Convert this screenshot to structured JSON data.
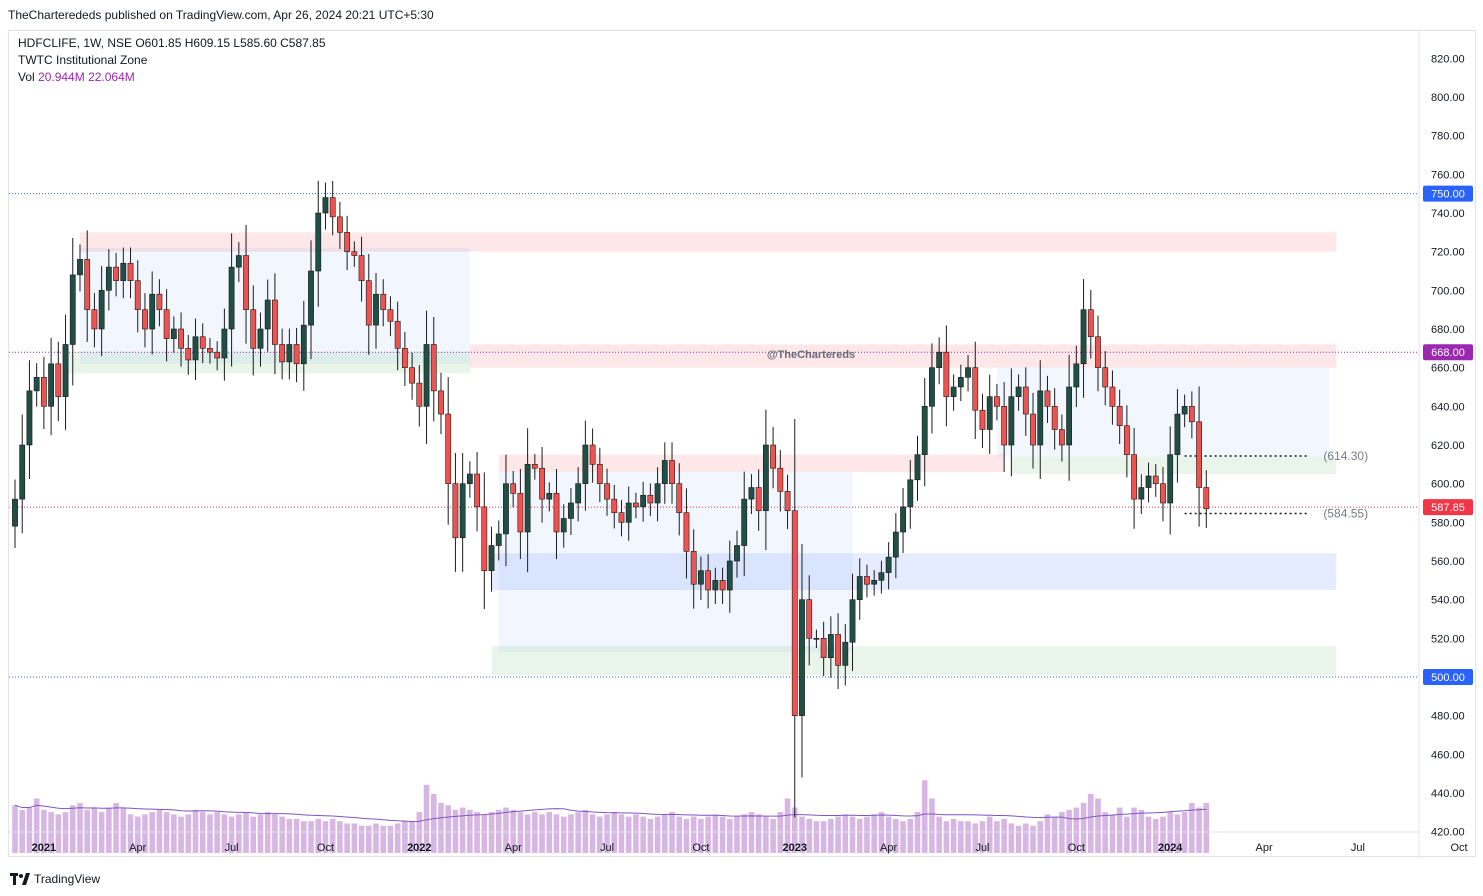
{
  "header": {
    "publish_line": "TheCharterededs published on TradingView.com, Apr 26, 2024 20:21 UTC+5:30"
  },
  "legend": {
    "symbol_line": "HDFCLIFE, 1W, NSE  O601.85  H609.15  L585.60  C587.85",
    "indicator": "TWTC Institutional Zone",
    "vol_label": "Vol",
    "vol_a": "20.944M",
    "vol_b": "22.064M"
  },
  "watermark": "@TheChartereds",
  "footer": {
    "brand": "TradingView",
    "logo_icon": "tradingview-logo-icon"
  },
  "colors": {
    "up": "#26a69a",
    "down": "#ef5350",
    "up_dark": "#1f4f45",
    "down_dark": "#c9303c",
    "vol": "#d8b6e3",
    "vol_ma": "#7e57c2",
    "axis_text": "#131722",
    "tag_blue": "#2962ff",
    "tag_purple": "#9c27b0",
    "tag_red": "#f23645"
  },
  "chart_data": {
    "type": "candlestick",
    "title": "HDFCLIFE, 1W, NSE",
    "ylim": [
      410,
      830
    ],
    "y_ticks": [
      420,
      440,
      460,
      480,
      500,
      520,
      540,
      560,
      580,
      600,
      620,
      640,
      660,
      680,
      700,
      720,
      740,
      760,
      780,
      800,
      820
    ],
    "x_ticks": [
      {
        "label": "2021",
        "week": 4
      },
      {
        "label": "Apr",
        "week": 17
      },
      {
        "label": "Jul",
        "week": 30
      },
      {
        "label": "Oct",
        "week": 43
      },
      {
        "label": "2022",
        "week": 56
      },
      {
        "label": "Apr",
        "week": 69
      },
      {
        "label": "Jul",
        "week": 82
      },
      {
        "label": "Oct",
        "week": 95
      },
      {
        "label": "2023",
        "week": 108
      },
      {
        "label": "Apr",
        "week": 121
      },
      {
        "label": "Jul",
        "week": 134
      },
      {
        "label": "Oct",
        "week": 147
      },
      {
        "label": "2024",
        "week": 160
      },
      {
        "label": "Apr",
        "week": 173
      },
      {
        "label": "Jul",
        "week": 186
      },
      {
        "label": "Oct",
        "week": 200
      }
    ],
    "close_weekly": [
      592,
      620,
      648,
      655,
      640,
      662,
      645,
      672,
      708,
      716,
      690,
      680,
      700,
      712,
      705,
      714,
      705,
      690,
      680,
      698,
      690,
      675,
      680,
      670,
      664,
      676,
      670,
      668,
      665,
      680,
      712,
      718,
      690,
      670,
      680,
      695,
      672,
      663,
      672,
      662,
      682,
      710,
      740,
      748,
      738,
      730,
      720,
      718,
      705,
      682,
      698,
      690,
      684,
      670,
      660,
      652,
      640,
      672,
      648,
      636,
      600,
      572,
      600,
      605,
      588,
      555,
      568,
      574,
      600,
      595,
      575,
      610,
      608,
      592,
      595,
      575,
      582,
      590,
      600,
      620,
      610,
      600,
      592,
      585,
      580,
      590,
      588,
      594,
      590,
      600,
      612,
      600,
      585,
      565,
      548,
      555,
      545,
      550,
      545,
      560,
      568,
      592,
      598,
      586,
      620,
      608,
      596,
      586,
      480,
      540,
      520,
      520,
      510,
      522,
      506,
      518,
      540,
      552,
      548,
      550,
      554,
      562,
      575,
      588,
      602,
      615,
      640,
      660,
      668,
      645,
      650,
      655,
      660,
      638,
      628,
      645,
      640,
      620,
      645,
      650,
      636,
      620,
      648,
      640,
      628,
      620,
      650,
      662,
      690,
      676,
      660,
      650,
      640,
      630,
      615,
      592,
      598,
      604,
      600,
      590,
      615,
      636,
      640,
      632,
      598,
      587
    ],
    "volume_weekly": [
      21,
      19,
      20,
      24,
      19,
      18,
      17,
      18,
      21,
      22,
      19,
      20,
      18,
      20,
      22,
      20,
      17,
      16,
      17,
      18,
      19,
      18,
      17,
      16,
      17,
      19,
      18,
      17,
      18,
      17,
      16,
      17,
      18,
      16,
      17,
      18,
      17,
      16,
      15,
      15,
      14,
      14,
      15,
      14,
      15,
      14,
      13,
      13,
      12,
      12,
      13,
      12,
      12,
      13,
      14,
      14,
      18,
      30,
      26,
      22,
      21,
      19,
      20,
      19,
      18,
      17,
      18,
      19,
      20,
      19,
      18,
      17,
      18,
      17,
      18,
      17,
      16,
      17,
      18,
      19,
      17,
      16,
      17,
      18,
      17,
      16,
      17,
      16,
      15,
      16,
      17,
      18,
      16,
      15,
      16,
      15,
      16,
      17,
      16,
      15,
      16,
      17,
      18,
      17,
      16,
      15,
      18,
      24,
      20,
      16,
      15,
      14,
      14,
      15,
      16,
      17,
      16,
      15,
      16,
      17,
      18,
      16,
      15,
      14,
      15,
      18,
      32,
      24,
      16,
      14,
      15,
      14,
      14,
      13,
      14,
      16,
      14,
      15,
      13,
      12,
      13,
      12,
      14,
      17,
      16,
      18,
      19,
      20,
      22,
      26,
      24,
      18,
      17,
      20,
      16,
      20,
      19,
      16,
      15,
      16,
      18,
      17,
      18,
      22,
      20,
      22
    ],
    "volume_ylim": [
      0,
      110
    ],
    "horizontal_levels": [
      {
        "value": 750,
        "label": "750.00",
        "tag": "tag_blue"
      },
      {
        "value": 668,
        "label": "668.00",
        "tag": "tag_purple"
      },
      {
        "value": 587.85,
        "label": "587.85",
        "tag": "tag_red"
      },
      {
        "value": 500,
        "label": "500.00",
        "tag": "tag_blue"
      }
    ],
    "dashed_levels": [
      {
        "value": 614.3,
        "label": "(614.30)",
        "from_week": 162,
        "to_week": 179
      },
      {
        "value": 584.55,
        "label": "(584.55)",
        "from_week": 162,
        "to_week": 179
      }
    ],
    "zones": [
      {
        "kind": "supply",
        "from_week": 9,
        "to_week": 183,
        "low": 720,
        "high": 730
      },
      {
        "kind": "range",
        "from_week": 9,
        "to_week": 63,
        "low": 662,
        "high": 722
      },
      {
        "kind": "demand",
        "from_week": 7,
        "to_week": 63,
        "low": 657,
        "high": 668
      },
      {
        "kind": "supply",
        "from_week": 63,
        "to_week": 183,
        "low": 660,
        "high": 672
      },
      {
        "kind": "supply",
        "from_week": 67,
        "to_week": 137,
        "low": 606,
        "high": 615
      },
      {
        "kind": "range",
        "from_week": 67,
        "to_week": 116,
        "low": 513,
        "high": 606
      },
      {
        "kind": "demand",
        "from_week": 66,
        "to_week": 183,
        "low": 501,
        "high": 516
      },
      {
        "kind": "range",
        "from_week": 136,
        "to_week": 182,
        "low": 614,
        "high": 660
      },
      {
        "kind": "demand",
        "from_week": 138,
        "to_week": 183,
        "low": 605,
        "high": 614
      },
      {
        "kind": "support",
        "from_week": 66,
        "to_week": 183,
        "low": 545,
        "high": 564
      }
    ]
  }
}
